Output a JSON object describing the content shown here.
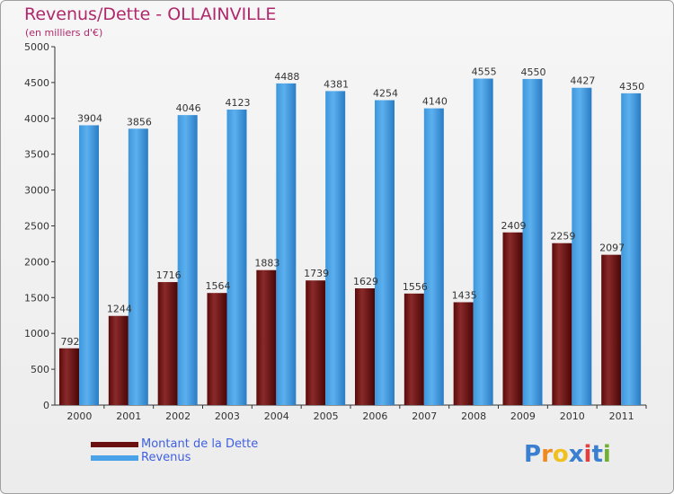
{
  "header": {
    "title": "Revenus/Dette - OLLAINVILLE",
    "subtitle": "(en milliers d'€)"
  },
  "chart_data": {
    "type": "bar",
    "categories": [
      "2000",
      "2001",
      "2002",
      "2003",
      "2004",
      "2005",
      "2006",
      "2007",
      "2008",
      "2009",
      "2010",
      "2011"
    ],
    "series": [
      {
        "name": "Montant de la Dette",
        "color": "#7a1c20",
        "values": [
          792,
          1244,
          1716,
          1564,
          1883,
          1739,
          1629,
          1556,
          1435,
          2409,
          2259,
          2097
        ]
      },
      {
        "name": "Revenus",
        "color": "#4aa3e8",
        "values": [
          3904,
          3856,
          4046,
          4123,
          4488,
          4381,
          4254,
          4140,
          4555,
          4550,
          4427,
          4350
        ]
      }
    ],
    "ylim": [
      0,
      5000
    ],
    "yticks": [
      0,
      500,
      1000,
      1500,
      2000,
      2500,
      3000,
      3500,
      4000,
      4500,
      5000
    ],
    "grid": false
  },
  "legend": {
    "items": [
      {
        "label": "Montant de la Dette",
        "color": "#6a1010"
      },
      {
        "label": "Revenus",
        "color": "#4aa3e8"
      }
    ]
  },
  "logo": {
    "letters": [
      "P",
      "r",
      "o",
      "x",
      "i",
      "t",
      "i"
    ],
    "colors": [
      "#3a7fd0",
      "#f08a20",
      "#f0c020",
      "#3a7fd0",
      "#e04040",
      "#3a7fd0",
      "#70b030"
    ]
  }
}
